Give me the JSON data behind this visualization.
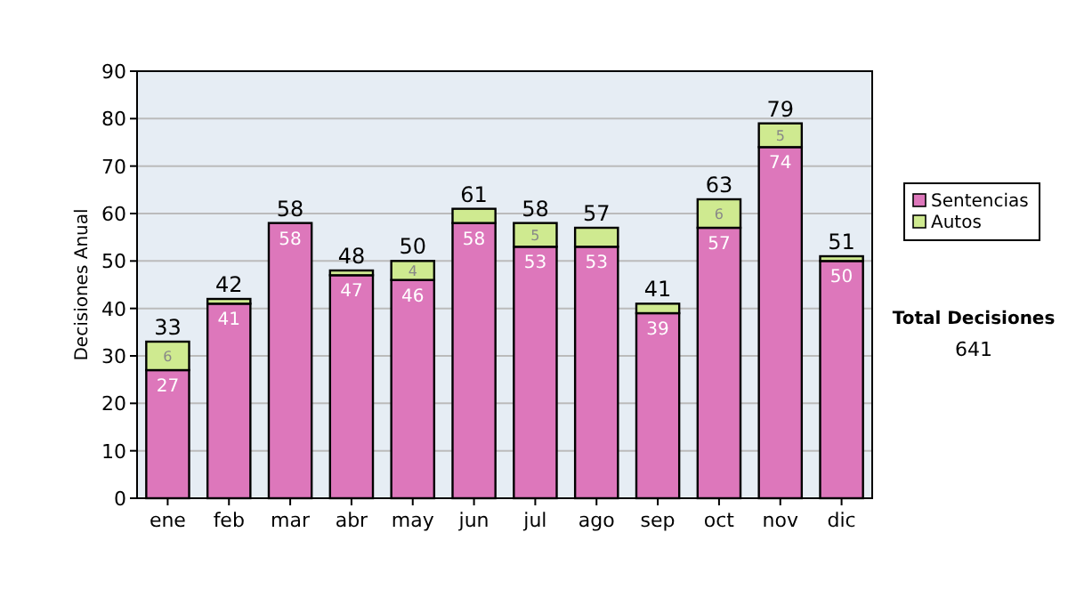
{
  "chart_data": {
    "type": "bar",
    "stacked": true,
    "ylabel": "Decisiones Anual",
    "categories": [
      "ene",
      "feb",
      "mar",
      "abr",
      "may",
      "jun",
      "jul",
      "ago",
      "sep",
      "oct",
      "nov",
      "dic"
    ],
    "series": [
      {
        "name": "Sentencias",
        "color": "#dd77bb",
        "values": [
          27,
          41,
          58,
          47,
          46,
          58,
          53,
          53,
          39,
          57,
          74,
          50
        ],
        "value_labels": [
          "27",
          "41",
          "58",
          "47",
          "46",
          "58",
          "53",
          "53",
          "39",
          "57",
          "74",
          "50"
        ]
      },
      {
        "name": "Autos",
        "color": "#cfea90",
        "values": [
          6,
          1,
          0,
          1,
          4,
          3,
          5,
          4,
          2,
          6,
          5,
          1
        ],
        "value_labels": [
          "6",
          null,
          null,
          null,
          "4",
          null,
          "5",
          null,
          null,
          "6",
          "5",
          null
        ]
      }
    ],
    "totals": [
      "33",
      "42",
      "58",
      "48",
      "50",
      "61",
      "58",
      "57",
      "41",
      "63",
      "79",
      "51"
    ],
    "ylim": [
      0,
      90
    ],
    "yticks": [
      0,
      10,
      20,
      30,
      40,
      50,
      60,
      70,
      80,
      90
    ],
    "grid": "y",
    "legend": "right",
    "annotations": [
      "Total Decisiones",
      "641"
    ]
  }
}
